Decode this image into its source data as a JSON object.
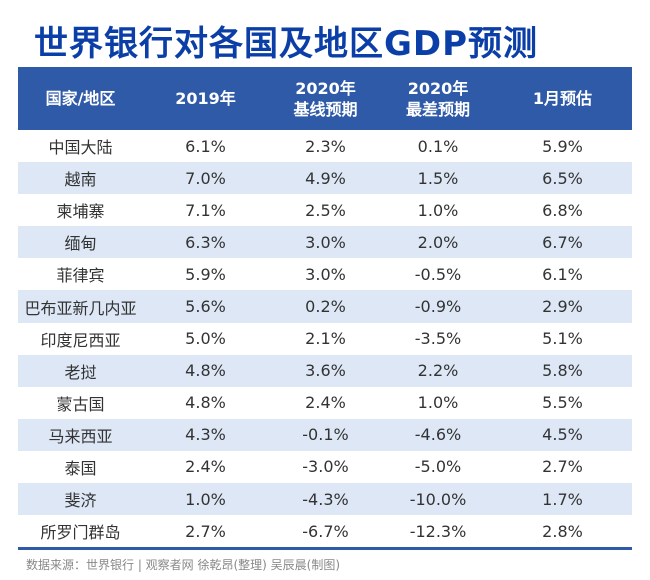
{
  "title": "世界银行对各国及地区GDP预测",
  "footer": "数据来源：世界银行  |  观察者网 徐乾昂(整理) 吴辰晨(制图)",
  "colors": {
    "title": "#0b3ea6",
    "header_bg": "#2e5aa8",
    "alt_row": "#dde7f6"
  },
  "chart_data": {
    "type": "table",
    "title": "世界银行对各国及地区GDP预测",
    "columns": [
      {
        "line1": "国家/地区",
        "line2": ""
      },
      {
        "line1": "2019年",
        "line2": ""
      },
      {
        "line1": "2020年",
        "line2": "基线预期"
      },
      {
        "line1": "2020年",
        "line2": "最差预期"
      },
      {
        "line1": "1月预估",
        "line2": ""
      }
    ],
    "rows": [
      [
        "中国大陆",
        "6.1%",
        "2.3%",
        "0.1%",
        "5.9%"
      ],
      [
        "越南",
        "7.0%",
        "4.9%",
        "1.5%",
        "6.5%"
      ],
      [
        "柬埔寨",
        "7.1%",
        "2.5%",
        "1.0%",
        "6.8%"
      ],
      [
        "缅甸",
        "6.3%",
        "3.0%",
        "2.0%",
        "6.7%"
      ],
      [
        "菲律宾",
        "5.9%",
        "3.0%",
        "-0.5%",
        "6.1%"
      ],
      [
        "巴布亚新几内亚",
        "5.6%",
        "0.2%",
        "-0.9%",
        "2.9%"
      ],
      [
        "印度尼西亚",
        "5.0%",
        "2.1%",
        "-3.5%",
        "5.1%"
      ],
      [
        "老挝",
        "4.8%",
        "3.6%",
        "2.2%",
        "5.8%"
      ],
      [
        "蒙古国",
        "4.8%",
        "2.4%",
        "1.0%",
        "5.5%"
      ],
      [
        "马来西亚",
        "4.3%",
        "-0.1%",
        "-4.6%",
        "4.5%"
      ],
      [
        "泰国",
        "2.4%",
        "-3.0%",
        "-5.0%",
        "2.7%"
      ],
      [
        "斐济",
        "1.0%",
        "-4.3%",
        "-10.0%",
        "1.7%"
      ],
      [
        "所罗门群岛",
        "2.7%",
        "-6.7%",
        "-12.3%",
        "2.8%"
      ]
    ]
  }
}
